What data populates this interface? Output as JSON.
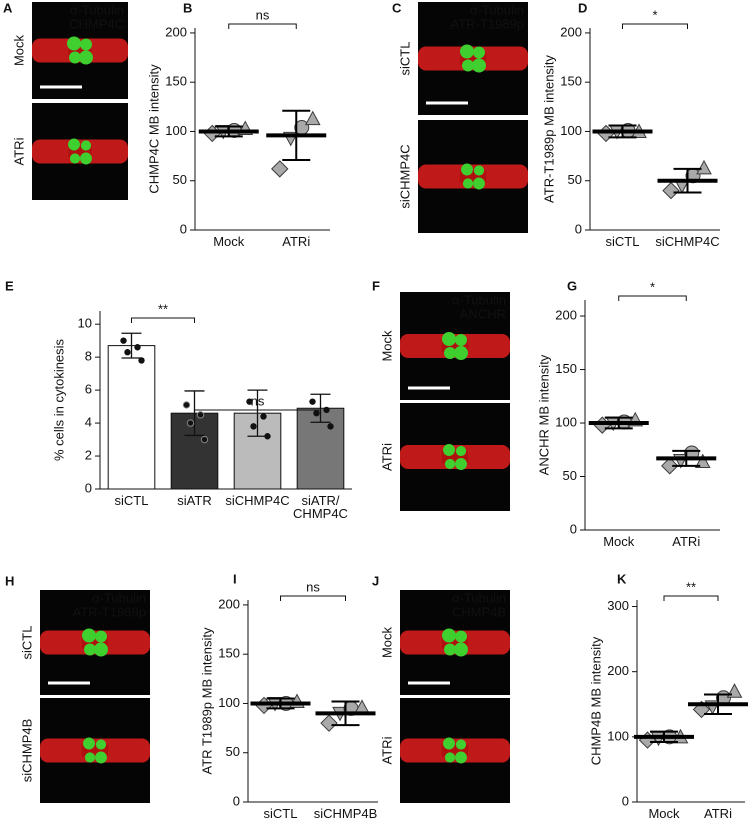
{
  "image_panels": [
    {
      "panel": "A",
      "stains": [
        "α-Tubulin",
        "CHMP4C"
      ],
      "conditions": [
        "Mock",
        "ATRi"
      ]
    },
    {
      "panel": "C",
      "stains": [
        "α-Tubulin",
        "ATR-T1989p"
      ],
      "conditions": [
        "siCTL",
        "siCHMP4C"
      ]
    },
    {
      "panel": "F",
      "stains": [
        "α-Tubulin",
        "ANCHR"
      ],
      "conditions": [
        "Mock",
        "ATRi"
      ]
    },
    {
      "panel": "H",
      "stains": [
        "α-Tubulin",
        "ATR-T1989p"
      ],
      "conditions": [
        "siCTL",
        "siCHMP4B"
      ]
    },
    {
      "panel": "J",
      "stains": [
        "α-Tubulin",
        "CHMP4B"
      ],
      "conditions": [
        "Mock",
        "ATRi"
      ]
    }
  ],
  "chart_data": [
    {
      "type": "dot_plot",
      "panel": "B",
      "y_label": "CHMP4C MB intensity",
      "categories": [
        "Mock",
        "ATRi"
      ],
      "means": [
        100,
        96
      ],
      "errors": [
        5,
        25
      ],
      "replicates": [
        [
          98,
          100,
          101,
          103
        ],
        [
          62,
          93,
          104,
          113
        ]
      ],
      "significance": "ns",
      "ylim": [
        0,
        205
      ],
      "yticks": [
        0,
        50,
        100,
        150,
        200
      ]
    },
    {
      "type": "dot_plot",
      "panel": "D",
      "y_label": "ATR-T1989p MB intensity",
      "categories": [
        "siCTL",
        "siCHMP4C"
      ],
      "means": [
        100,
        50
      ],
      "errors": [
        6,
        12
      ],
      "replicates": [
        [
          98,
          100,
          101,
          100
        ],
        [
          40,
          45,
          55,
          63
        ]
      ],
      "significance": "*",
      "ylim": [
        0,
        205
      ],
      "yticks": [
        0,
        50,
        100,
        150,
        200
      ]
    },
    {
      "type": "bar",
      "panel": "E",
      "y_label": "% cells in cytokinesis",
      "categories": [
        "siCTL",
        "siATR",
        "siCHMP4C",
        "siATR/\nCHMP4C"
      ],
      "values": [
        8.7,
        4.6,
        4.6,
        4.9
      ],
      "errors": [
        0.75,
        1.35,
        1.4,
        0.85
      ],
      "colors": [
        "#ffffff",
        "#333333",
        "#bbbbbb",
        "#777777"
      ],
      "points": [
        [
          9.0,
          8.6,
          8.3,
          7.8
        ],
        [
          5.1,
          4.5,
          4.0,
          3.0
        ],
        [
          5.3,
          4.4,
          3.8,
          3.2
        ],
        [
          5.3,
          4.8,
          4.6,
          3.8
        ]
      ],
      "significance": [
        "**",
        "ns"
      ],
      "ylim": [
        0,
        10.8
      ],
      "yticks": [
        0,
        2,
        4,
        6,
        8,
        10
      ]
    },
    {
      "type": "dot_plot",
      "panel": "G",
      "y_label": "ANCHR MB  intensity",
      "categories": [
        "Mock",
        "ATRi"
      ],
      "means": [
        100,
        67
      ],
      "errors": [
        5,
        7
      ],
      "replicates": [
        [
          98,
          100,
          101,
          103
        ],
        [
          60,
          65,
          72,
          64
        ]
      ],
      "significance": "*",
      "ylim": [
        0,
        215
      ],
      "yticks": [
        0,
        50,
        100,
        150,
        200
      ]
    },
    {
      "type": "dot_plot",
      "panel": "I",
      "y_label": "ATR T1989p MB intensity",
      "categories": [
        "siCTL",
        "siCHMP4B"
      ],
      "means": [
        100,
        90
      ],
      "errors": [
        5,
        12
      ],
      "replicates": [
        [
          98,
          100,
          100,
          102
        ],
        [
          80,
          90,
          95,
          96
        ]
      ],
      "significance": "ns",
      "ylim": [
        0,
        205
      ],
      "yticks": [
        0,
        50,
        100,
        150,
        200
      ]
    },
    {
      "type": "dot_plot",
      "panel": "K",
      "y_label": "CHMP4B MB intensity",
      "categories": [
        "Mock",
        "ATRi"
      ],
      "means": [
        100,
        150
      ],
      "errors": [
        8,
        15
      ],
      "replicates": [
        [
          95,
          98,
          100,
          100
        ],
        [
          142,
          146,
          160,
          170
        ]
      ],
      "significance": "**",
      "ylim": [
        0,
        310
      ],
      "yticks": [
        0,
        100,
        200,
        300
      ]
    }
  ]
}
